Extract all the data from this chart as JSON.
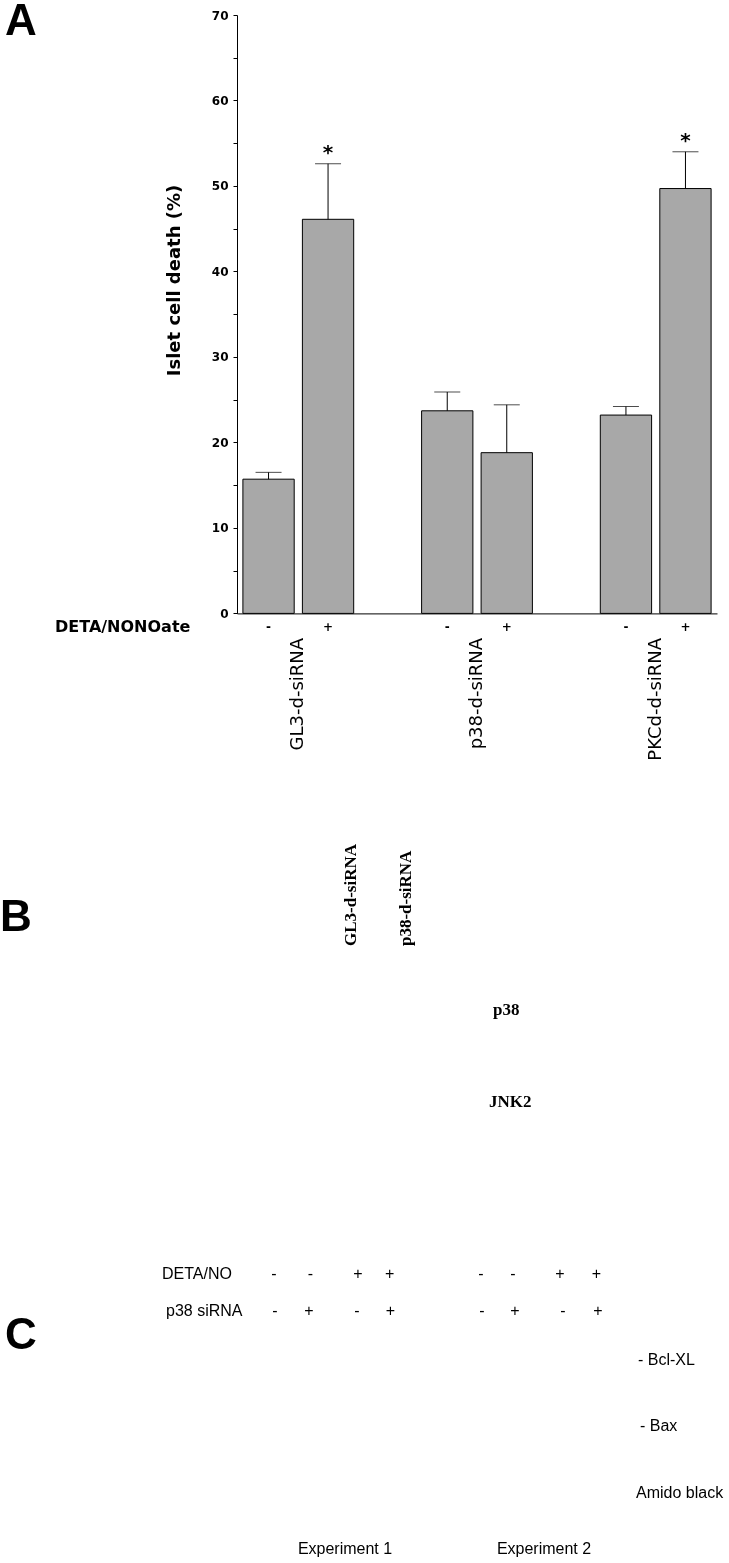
{
  "chart_data": [
    {
      "type": "bar",
      "title": "A",
      "ylabel": "Islet cell death (%)",
      "categories": [
        "GL3-d-siRNA",
        "p38-d-siRNA",
        "PKCd-d-siRNA"
      ],
      "series": [
        {
          "name": "-",
          "color": "#a8a8a8",
          "values": [
            15.7,
            23.7,
            23.2
          ],
          "errors": [
            [
              15.7,
              16.5
            ],
            [
              23.7,
              25.9
            ],
            [
              23.2,
              24.2
            ]
          ]
        },
        {
          "name": "+",
          "color": "#a8a8a8",
          "values": [
            46.1,
            18.8,
            49.7
          ],
          "errors": [
            [
              46.1,
              52.6
            ],
            [
              18.8,
              24.4
            ],
            [
              49.7,
              54.0
            ]
          ],
          "value_labels": [
            "*",
            null,
            "*"
          ]
        }
      ],
      "ylim": [
        0,
        70
      ],
      "yticks": [
        0,
        {
          "value": 5,
          "label": null
        },
        10,
        {
          "value": 15,
          "label": null
        },
        20,
        {
          "value": 25,
          "label": null
        },
        30,
        {
          "value": 35,
          "label": null
        },
        40,
        {
          "value": 45,
          "label": null
        },
        50,
        {
          "value": 55,
          "label": null
        },
        60,
        {
          "value": 65,
          "label": null
        },
        70
      ],
      "grid": false,
      "legend": false,
      "annotations": [
        "DETA/NONOate"
      ]
    },
    {
      "type": "other",
      "title": "B",
      "annotations": [
        "GL3-d-siRNA",
        "p38-d-siRNA",
        "p38",
        "JNK2"
      ]
    },
    {
      "type": "other",
      "title": "C",
      "annotations": [
        "DETA/NO",
        "-",
        "-",
        "+",
        "+",
        "-",
        "-",
        "+",
        "+",
        "p38 siRNA",
        "-",
        "+",
        "-",
        "+",
        "-",
        "+",
        "-",
        "+",
        "- Bcl-XL",
        "- Bax",
        "Amido black",
        "Experiment 1",
        "Experiment 2"
      ]
    }
  ]
}
